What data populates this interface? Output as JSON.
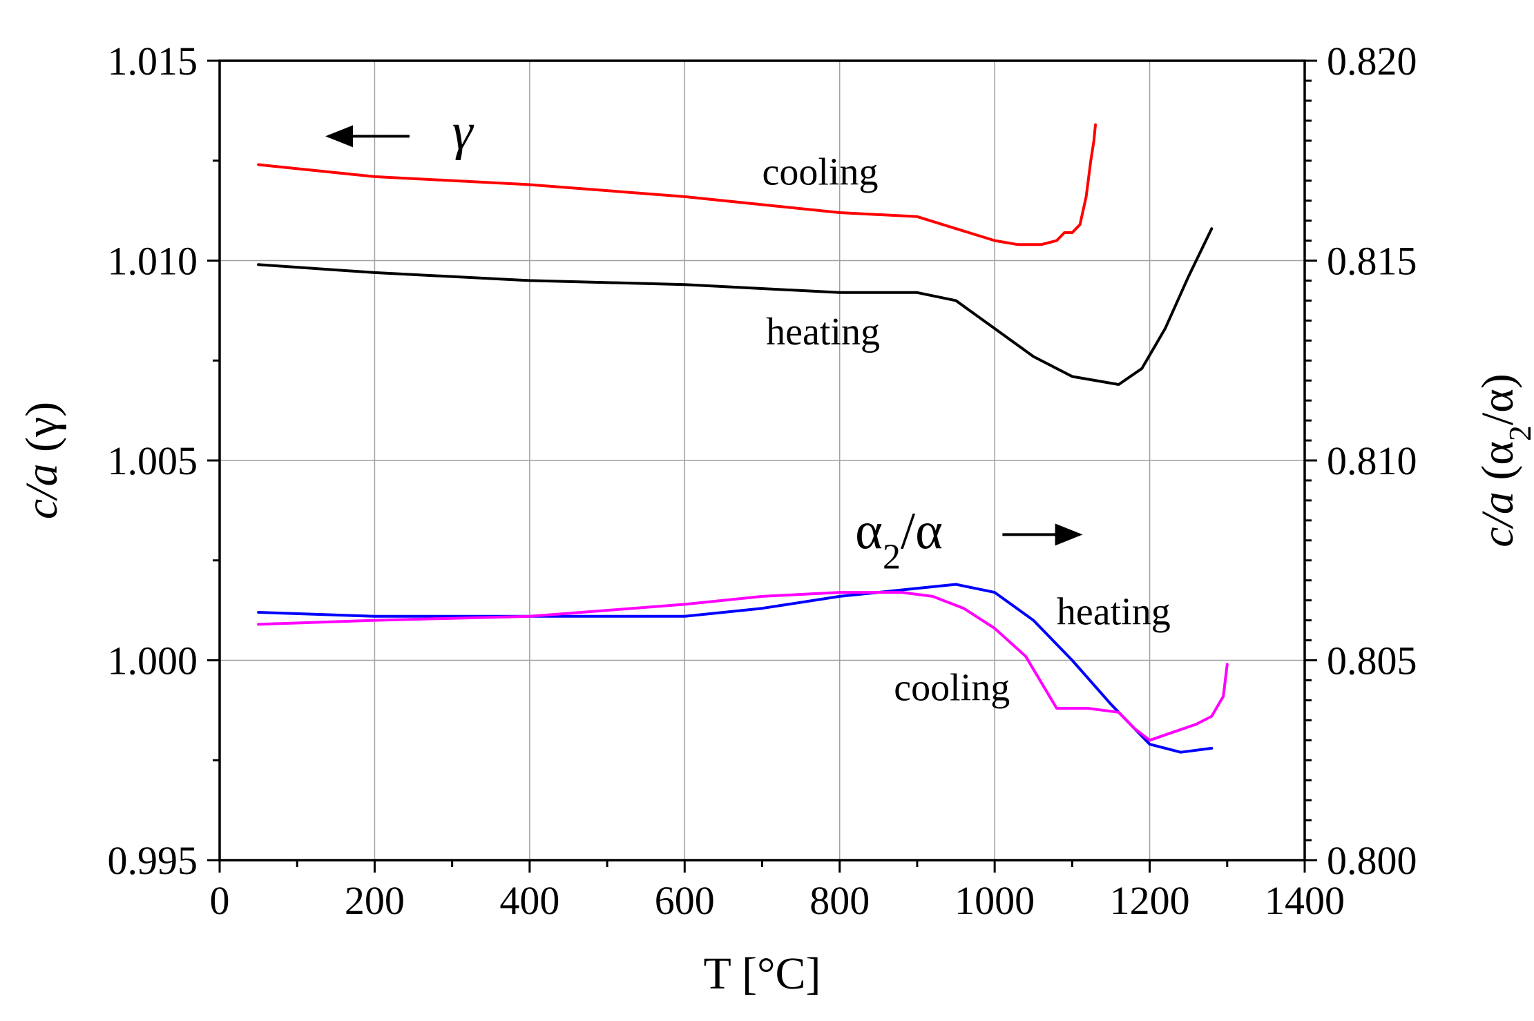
{
  "chart_data": {
    "type": "line",
    "title": "",
    "xlabel": "T [°C]",
    "ylabel_left": {
      "main": "c/a",
      "suffix": "(γ)"
    },
    "ylabel_right": {
      "main": "c/a",
      "suffix_open": "(α",
      "subscript": "2",
      "suffix_close": "/α)"
    },
    "xlim": [
      0,
      1400
    ],
    "ylim_left": [
      0.995,
      1.015
    ],
    "ylim_right": [
      0.8,
      0.82
    ],
    "grid": true,
    "x_ticks": [
      0,
      200,
      400,
      600,
      800,
      1000,
      1200,
      1400
    ],
    "x_tick_labels": [
      "0",
      "200",
      "400",
      "600",
      "800",
      "1000",
      "1200",
      "1400"
    ],
    "y_left_ticks": [
      0.995,
      1.0,
      1.005,
      1.01,
      1.015
    ],
    "y_left_tick_labels": [
      "0.995",
      "1.000",
      "1.005",
      "1.010",
      "1.015"
    ],
    "y_right_ticks": [
      0.8,
      0.805,
      0.81,
      0.815,
      0.82
    ],
    "y_right_tick_labels": [
      "0.800",
      "0.805",
      "0.810",
      "0.815",
      "0.820"
    ],
    "series": [
      {
        "name": "γ cooling",
        "axis": "left",
        "color": "#ff0000",
        "x": [
          50,
          200,
          400,
          600,
          800,
          900,
          950,
          1000,
          1030,
          1060,
          1080,
          1090,
          1100,
          1110,
          1118,
          1124,
          1128,
          1130
        ],
        "y": [
          1.0124,
          1.0121,
          1.0119,
          1.0116,
          1.0112,
          1.0111,
          1.0108,
          1.0105,
          1.0104,
          1.0104,
          1.0105,
          1.0107,
          1.0107,
          1.0109,
          1.0116,
          1.0125,
          1.013,
          1.0134
        ]
      },
      {
        "name": "γ heating",
        "axis": "left",
        "color": "#000000",
        "x": [
          50,
          200,
          400,
          600,
          800,
          900,
          950,
          1000,
          1050,
          1100,
          1160,
          1190,
          1220,
          1250,
          1280
        ],
        "y": [
          1.0099,
          1.0097,
          1.0095,
          1.0094,
          1.0092,
          1.0092,
          1.009,
          1.0083,
          1.0076,
          1.0071,
          1.0069,
          1.0073,
          1.0083,
          1.0096,
          1.0108
        ]
      },
      {
        "name": "α2/α heating",
        "axis": "right",
        "color": "#0000ff",
        "x": [
          50,
          200,
          400,
          600,
          700,
          800,
          900,
          950,
          1000,
          1050,
          1100,
          1150,
          1200,
          1240,
          1280
        ],
        "y": [
          0.8062,
          0.8061,
          0.8061,
          0.8061,
          0.8063,
          0.8066,
          0.8068,
          0.8069,
          0.8067,
          0.806,
          0.805,
          0.8039,
          0.8029,
          0.8027,
          0.8028
        ]
      },
      {
        "name": "α2/α cooling",
        "axis": "right",
        "color": "#ff00ff",
        "x": [
          50,
          200,
          400,
          600,
          700,
          800,
          880,
          920,
          960,
          1000,
          1040,
          1080,
          1120,
          1160,
          1180,
          1200,
          1230,
          1260,
          1280,
          1295,
          1300
        ],
        "y": [
          0.8059,
          0.806,
          0.8061,
          0.8064,
          0.8066,
          0.8067,
          0.8067,
          0.8066,
          0.8063,
          0.8058,
          0.8051,
          0.8038,
          0.8038,
          0.8037,
          0.8033,
          0.803,
          0.8032,
          0.8034,
          0.8036,
          0.8041,
          0.8049
        ]
      }
    ],
    "annotations": [
      {
        "id": "gamma-marker",
        "text": "γ",
        "x": 300,
        "y_left": 1.0128,
        "arrow": "left",
        "arrow_from_x": 245,
        "arrow_to_x": 140
      },
      {
        "id": "gamma-cooling",
        "text": "cooling",
        "x": 700,
        "y_left": 1.0119
      },
      {
        "id": "gamma-heating",
        "text": "heating",
        "x": 705,
        "y_left": 1.0079
      },
      {
        "id": "alpha-marker",
        "base": "α",
        "sub": "2",
        "rest": "/α",
        "x": 820,
        "y_left": 1.0028,
        "arrow": "right",
        "arrow_from_x": 1010,
        "arrow_to_x": 1110
      },
      {
        "id": "alpha-heating",
        "text": "heating",
        "x": 1080,
        "y_left": 1.0009
      },
      {
        "id": "alpha-cooling",
        "text": "cooling",
        "x": 870,
        "y_left": 0.999
      }
    ]
  }
}
